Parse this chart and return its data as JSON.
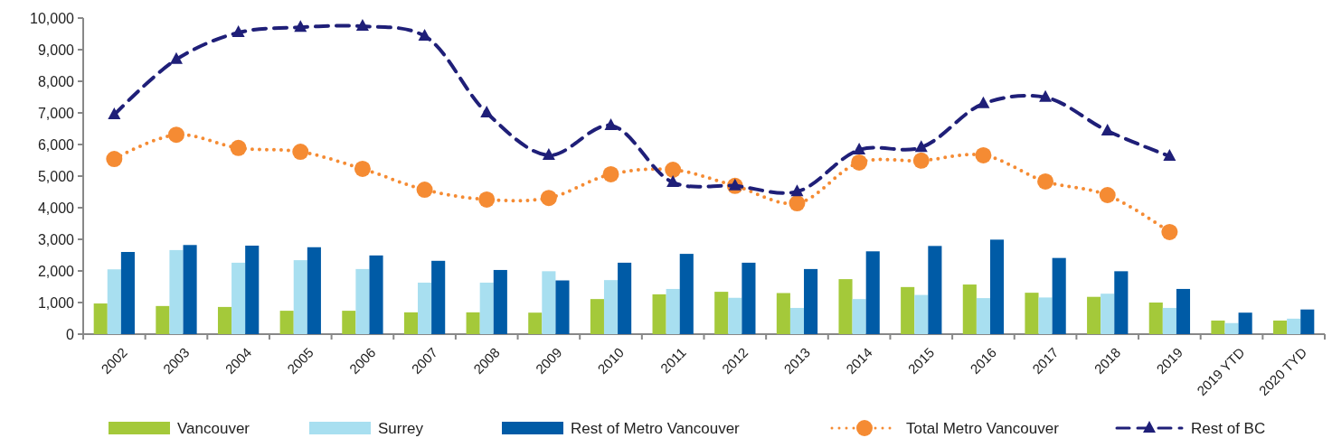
{
  "chart_data": {
    "type": "bar",
    "categories": [
      "2002",
      "2003",
      "2004",
      "2005",
      "2006",
      "2007",
      "2008",
      "2009",
      "2010",
      "2011",
      "2012",
      "2013",
      "2014",
      "2015",
      "2016",
      "2017",
      "2018",
      "2019",
      "2019 YTD",
      "2020 TYD"
    ],
    "ylim": [
      0,
      10000
    ],
    "yticks": [
      {
        "value": 0,
        "label": "0"
      },
      {
        "value": 1000,
        "label": "1,000"
      },
      {
        "value": 2000,
        "label": "2,000"
      },
      {
        "value": 3000,
        "label": "3,000"
      },
      {
        "value": 4000,
        "label": "4,000"
      },
      {
        "value": 5000,
        "label": "5,000"
      },
      {
        "value": 6000,
        "label": "6,000"
      },
      {
        "value": 7000,
        "label": "7,000"
      },
      {
        "value": 8000,
        "label": "8,000"
      },
      {
        "value": 9000,
        "label": "9,000"
      },
      {
        "value": 10000,
        "label": "10,000"
      }
    ],
    "grid": false,
    "legend": "bottom",
    "series": [
      {
        "name": "Vancouver",
        "color": "#a4c93a",
        "values": [
          970,
          890,
          860,
          740,
          740,
          690,
          690,
          680,
          1110,
          1260,
          1340,
          1300,
          1740,
          1490,
          1570,
          1310,
          1180,
          1000,
          430,
          430
        ]
      },
      {
        "name": "Surrey",
        "color": "#a8dff0",
        "values": [
          2050,
          2660,
          2260,
          2340,
          2060,
          1630,
          1630,
          1990,
          1710,
          1430,
          1150,
          830,
          1110,
          1240,
          1140,
          1160,
          1280,
          830,
          350,
          490
        ]
      },
      {
        "name": "Rest of Metro Vancouver",
        "color": "#005ba6",
        "values": [
          2600,
          2820,
          2800,
          2750,
          2490,
          2320,
          2030,
          1700,
          2260,
          2540,
          2260,
          2060,
          2620,
          2790,
          2990,
          2410,
          1990,
          1430,
          680,
          780
        ]
      },
      {
        "name": "Total Metro Vancouver",
        "type": "line",
        "color": "#f58b33",
        "marker": "circle",
        "line_style": "dotted",
        "values": [
          5540,
          6310,
          5890,
          5770,
          5230,
          4570,
          4260,
          4310,
          5060,
          5200,
          4690,
          4140,
          5430,
          5490,
          5660,
          4830,
          4400,
          3230,
          null,
          null
        ]
      },
      {
        "name": "Rest of BC",
        "type": "line",
        "color": "#1f1f78",
        "marker": "triangle",
        "line_style": "dashed",
        "values": [
          6940,
          8690,
          9540,
          9710,
          9740,
          9430,
          7000,
          5660,
          6600,
          4800,
          4690,
          4510,
          5830,
          5910,
          7290,
          7490,
          6430,
          5630,
          null,
          null
        ]
      }
    ]
  }
}
